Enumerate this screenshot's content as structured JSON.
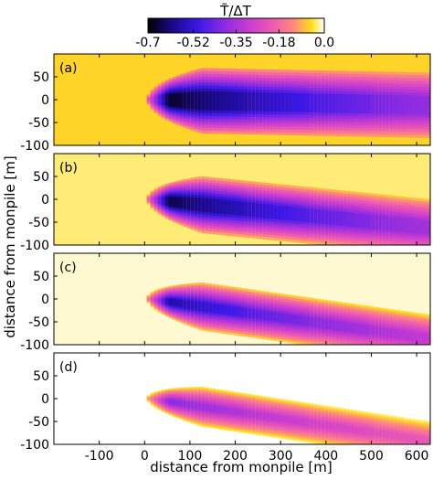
{
  "colorbar": {
    "label": "T̃/ΔT",
    "ticks": [
      -0.7,
      -0.52,
      -0.35,
      -0.18,
      0.0
    ],
    "tick_labels": [
      "-0.7",
      "-0.52",
      "-0.35",
      "-0.18",
      "0.0"
    ],
    "range": [
      -0.7,
      0.0
    ],
    "colormap_stops": [
      {
        "value": -0.7,
        "color": "#000000"
      },
      {
        "value": -0.6,
        "color": "#1a0a8c"
      },
      {
        "value": -0.5,
        "color": "#3b18e6"
      },
      {
        "value": -0.4,
        "color": "#8a2be2"
      },
      {
        "value": -0.3,
        "color": "#c83cd0"
      },
      {
        "value": -0.2,
        "color": "#ee5cb0"
      },
      {
        "value": -0.12,
        "color": "#ff8a7a"
      },
      {
        "value": -0.05,
        "color": "#ffe01a"
      },
      {
        "value": 0.0,
        "color": "#ffffff"
      }
    ]
  },
  "chart_data": {
    "type": "heatmap",
    "xlabel": "distance from monpile [m]",
    "ylabel": "distance from monpile [m]",
    "xlim": [
      -200,
      630
    ],
    "ylim": [
      -100,
      100
    ],
    "xticks": [
      -100,
      0,
      100,
      200,
      300,
      400,
      500,
      600
    ],
    "yticks": [
      -100,
      -50,
      0,
      50
    ],
    "panels": [
      {
        "label": "(a)",
        "background_value": -0.06,
        "wake_start_x": 5,
        "wake_center_slope": -0.02,
        "core_min_value": -0.7,
        "core_width_m": 40,
        "outer_width_m": 75
      },
      {
        "label": "(b)",
        "background_value": -0.03,
        "wake_start_x": 5,
        "wake_center_slope": -0.1,
        "core_min_value": -0.68,
        "core_width_m": 30,
        "outer_width_m": 65
      },
      {
        "label": "(c)",
        "background_value": -0.01,
        "wake_start_x": 5,
        "wake_center_slope": -0.14,
        "core_min_value": -0.6,
        "core_width_m": 20,
        "outer_width_m": 55
      },
      {
        "label": "(d)",
        "background_value": 0.0,
        "wake_start_x": 5,
        "wake_center_slope": -0.15,
        "core_min_value": -0.42,
        "core_width_m": 14,
        "outer_width_m": 45
      }
    ]
  }
}
